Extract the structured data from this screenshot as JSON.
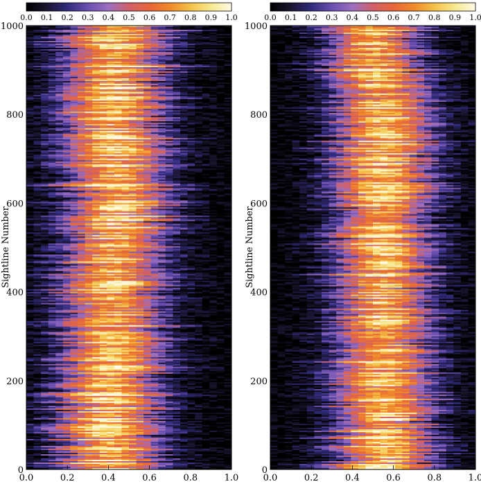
{
  "chart_data": [
    {
      "type": "heatmap",
      "panel": "left",
      "ylabel": "Sightline Number",
      "xlim": [
        0.0,
        1.0
      ],
      "ylim": [
        0,
        1000
      ],
      "xticks": [
        "0.0",
        "0.2",
        "0.4",
        "0.6",
        "0.8",
        "1.0"
      ],
      "yticks": [
        "0",
        "200",
        "400",
        "600",
        "800",
        "1000"
      ],
      "colorbar": {
        "range": [
          0.0,
          1.0
        ],
        "ticks": [
          "0.0",
          "0.1",
          "0.2",
          "0.3",
          "0.4",
          "0.5",
          "0.6",
          "0.7",
          "0.8",
          "0.9",
          "1.0"
        ],
        "colormap": "cubehelix-like (black → blue/purple → red/orange → yellow → white)"
      },
      "rows": 1000,
      "profile_peak_x": [
        [
          0,
          0.4
        ],
        [
          400,
          0.42
        ],
        [
          600,
          0.45
        ],
        [
          800,
          0.42
        ],
        [
          1000,
          0.45
        ]
      ],
      "profile_width_x": 0.17
    },
    {
      "type": "heatmap",
      "panel": "right",
      "ylabel": "Sightline Number",
      "xlim": [
        0.0,
        1.0
      ],
      "ylim": [
        0,
        1000
      ],
      "xticks": [
        "0.0",
        "0.2",
        "0.4",
        "0.6",
        "0.8",
        "1.0"
      ],
      "yticks": [
        "0",
        "200",
        "400",
        "600",
        "800",
        "1000"
      ],
      "colorbar": {
        "range": [
          0.0,
          1.0
        ],
        "ticks": [
          "0.0",
          "0.1",
          "0.2",
          "0.3",
          "0.4",
          "0.5",
          "0.6",
          "0.7",
          "0.8",
          "0.9",
          "1.0"
        ],
        "colormap": "cubehelix-like (black → blue/purple → red/orange → yellow → white)"
      },
      "rows": 1000,
      "profile_peak_x": [
        [
          0,
          0.55
        ],
        [
          400,
          0.55
        ],
        [
          600,
          0.55
        ],
        [
          800,
          0.55
        ],
        [
          1000,
          0.5
        ]
      ],
      "profile_width_x": 0.16
    }
  ],
  "colors": {
    "stops": [
      "#000000",
      "#1a1530",
      "#2f2a7a",
      "#6a4fb0",
      "#9b6fc0",
      "#d0606a",
      "#e8673a",
      "#f08a2a",
      "#f5c24a",
      "#f7e890",
      "#fffbe6"
    ]
  }
}
